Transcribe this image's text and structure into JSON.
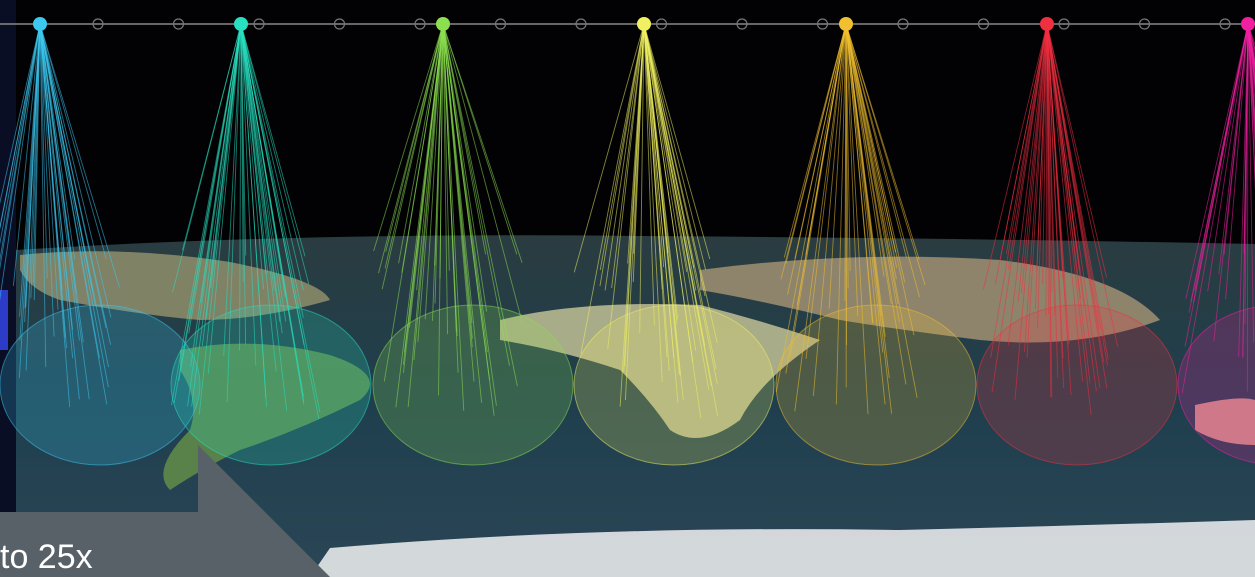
{
  "callout": {
    "text": "to 25x"
  }
}
